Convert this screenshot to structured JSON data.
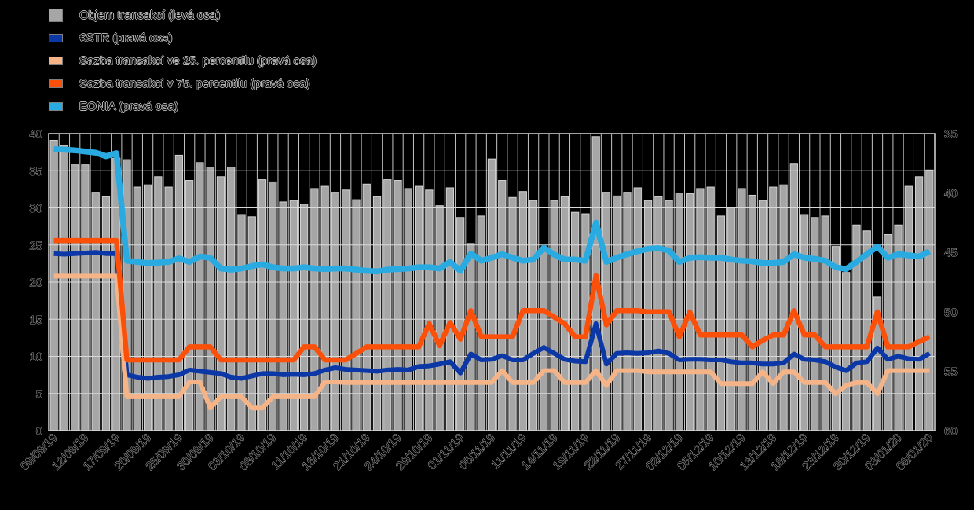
{
  "page": {
    "background": "#000000"
  },
  "legend": {
    "items": [
      {
        "label": "Objem transakcí (levá osa)",
        "color": "#a6a6a6"
      },
      {
        "label": "€STR (pravá osa)",
        "color": "#0b38a6"
      },
      {
        "label": "Sazba transakcí ve 25. percentilu (pravá osa)",
        "color": "#f5b488"
      },
      {
        "label": "Sazba transakcí v 75. percentilu (pravá osa)",
        "color": "#fb500a"
      },
      {
        "label": "EONIA (pravá osa)",
        "color": "#29abe2"
      }
    ]
  },
  "chart_data": {
    "type": "bar",
    "title": "",
    "xlabel": "",
    "ylabel": "",
    "left_axis": {
      "min": 0,
      "max": 40,
      "ticks": [
        "40",
        "35",
        "30",
        "25",
        "20",
        "15",
        "10",
        "5",
        "0"
      ]
    },
    "right_axis": {
      "min": 35,
      "max": 60,
      "inverted": true,
      "ticks": [
        "35",
        "40",
        "45",
        "50",
        "55",
        "60"
      ]
    },
    "grid": {
      "h_color": "#d9d9d9",
      "v_color": "#c4c4c4",
      "frame_color": "#d9d9d9"
    },
    "x_label_step": 3,
    "x_tick_labels": [
      "09/09/19",
      "12/09/19",
      "17/09/19",
      "20/09/19",
      "25/09/19",
      "30/09/19",
      "03/10/19",
      "08/10/19",
      "11/10/19",
      "16/10/19",
      "21/10/19",
      "24/10/19",
      "29/10/19",
      "01/11/19",
      "06/11/19",
      "11/11/19",
      "14/11/19",
      "19/11/19",
      "22/11/19",
      "27/11/19",
      "02/12/19",
      "05/12/19",
      "10/12/19",
      "13/12/19",
      "18/12/19",
      "23/12/19",
      "30/12/19",
      "03/01/20",
      "08/01/20"
    ],
    "categories": [
      "09/09/19",
      "10/09/19",
      "11/09/19",
      "12/09/19",
      "13/09/19",
      "16/09/19",
      "17/09/19",
      "18/09/19",
      "19/09/19",
      "20/09/19",
      "23/09/19",
      "24/09/19",
      "25/09/19",
      "26/09/19",
      "27/09/19",
      "30/09/19",
      "01/10/19",
      "02/10/19",
      "03/10/19",
      "04/10/19",
      "07/10/19",
      "08/10/19",
      "09/10/19",
      "10/10/19",
      "11/10/19",
      "14/10/19",
      "15/10/19",
      "16/10/19",
      "17/10/19",
      "18/10/19",
      "21/10/19",
      "22/10/19",
      "23/10/19",
      "24/10/19",
      "25/10/19",
      "28/10/19",
      "29/10/19",
      "30/10/19",
      "31/10/19",
      "01/11/19",
      "04/11/19",
      "05/11/19",
      "06/11/19",
      "07/11/19",
      "08/11/19",
      "11/11/19",
      "12/11/19",
      "13/11/19",
      "14/11/19",
      "15/11/19",
      "18/11/19",
      "19/11/19",
      "20/11/19",
      "21/11/19",
      "22/11/19",
      "25/11/19",
      "26/11/19",
      "27/11/19",
      "28/11/19",
      "29/11/19",
      "02/12/19",
      "03/12/19",
      "04/12/19",
      "05/12/19",
      "06/12/19",
      "09/12/19",
      "10/12/19",
      "11/12/19",
      "12/12/19",
      "13/12/19",
      "16/12/19",
      "17/12/19",
      "18/12/19",
      "19/12/19",
      "20/12/19",
      "23/12/19",
      "24/12/19",
      "27/12/19",
      "30/12/19",
      "31/12/19",
      "02/01/20",
      "03/01/20",
      "06/01/20",
      "07/01/20",
      "08/01/20"
    ],
    "series": [
      {
        "id": "objem",
        "name": "Objem transakcí (levá osa)",
        "type": "bar",
        "axis": "left",
        "color": "#a6a6a6",
        "values": [
          39.1,
          38.4,
          35.8,
          35.8,
          32.1,
          31.5,
          36.7,
          36.5,
          32.8,
          33.1,
          34.2,
          32.8,
          37.1,
          33.7,
          36.1,
          35.5,
          34.2,
          35.5,
          29.1,
          28.8,
          33.8,
          33.5,
          30.8,
          31.0,
          30.5,
          32.6,
          32.9,
          32.1,
          32.4,
          31.1,
          33.2,
          31.5,
          33.8,
          33.7,
          32.6,
          32.9,
          32.4,
          30.3,
          32.7,
          28.7,
          25.2,
          28.9,
          36.6,
          33.7,
          31.4,
          32.2,
          31.0,
          24.5,
          31.0,
          31.5,
          29.4,
          29.2,
          39.6,
          32.1,
          31.6,
          32.1,
          32.7,
          31.0,
          31.5,
          31.0,
          32.0,
          31.9,
          32.6,
          32.8,
          28.9,
          30.1,
          32.6,
          31.7,
          31.0,
          32.8,
          33.1,
          35.9,
          29.1,
          28.7,
          28.9,
          24.8,
          21.3,
          27.7,
          26.9,
          18.0,
          26.4,
          27.7,
          32.9,
          34.2,
          35.1
        ]
      },
      {
        "id": "estr",
        "name": "€STR (pravá osa)",
        "type": "line",
        "axis": "right",
        "color": "#0b38a6",
        "values": [
          45.1,
          45.15,
          45.1,
          45.05,
          45.0,
          45.1,
          45.1,
          55.3,
          55.5,
          55.6,
          55.5,
          55.45,
          55.3,
          54.9,
          55.0,
          55.1,
          55.2,
          55.5,
          55.6,
          55.4,
          55.2,
          55.2,
          55.3,
          55.25,
          55.3,
          55.2,
          54.9,
          54.7,
          54.85,
          54.9,
          54.95,
          55.0,
          54.9,
          54.85,
          54.9,
          54.6,
          54.55,
          54.4,
          54.2,
          55.15,
          53.55,
          54.05,
          54.0,
          53.7,
          54.05,
          54.05,
          53.5,
          53.0,
          53.5,
          54.0,
          54.15,
          54.2,
          51.0,
          54.4,
          53.5,
          53.45,
          53.5,
          53.45,
          53.3,
          53.5,
          54.05,
          54.0,
          54.0,
          54.05,
          54.05,
          54.2,
          54.3,
          54.3,
          54.4,
          54.4,
          54.3,
          53.55,
          54.0,
          54.05,
          54.2,
          54.65,
          54.95,
          54.3,
          54.2,
          53.05,
          54.0,
          53.75,
          53.95,
          54.0,
          53.5
        ]
      },
      {
        "id": "p25",
        "name": "Sazba transakcí ve 25. percentilu (pravá osa)",
        "type": "line",
        "axis": "right",
        "color": "#f5b488",
        "values": [
          47.0,
          47.0,
          47.0,
          47.0,
          47.0,
          47.0,
          47.0,
          57.15,
          57.15,
          57.15,
          57.15,
          57.15,
          57.15,
          55.9,
          55.9,
          58.1,
          57.15,
          57.15,
          57.15,
          58.1,
          58.1,
          57.15,
          57.15,
          57.15,
          57.15,
          57.15,
          55.9,
          55.9,
          55.95,
          55.95,
          55.95,
          55.95,
          55.95,
          55.95,
          55.95,
          55.95,
          55.95,
          55.95,
          55.95,
          55.95,
          55.95,
          55.95,
          55.95,
          54.95,
          55.95,
          55.95,
          55.95,
          54.95,
          54.95,
          55.95,
          55.95,
          55.95,
          54.95,
          56.2,
          54.95,
          54.95,
          54.95,
          55.05,
          55.05,
          55.05,
          55.05,
          55.05,
          55.05,
          55.05,
          56.05,
          56.05,
          56.05,
          56.05,
          55.05,
          56.05,
          55.05,
          55.05,
          55.95,
          55.95,
          55.95,
          56.9,
          56.2,
          55.95,
          55.95,
          56.9,
          54.95,
          54.95,
          54.95,
          54.95,
          54.95
        ]
      },
      {
        "id": "p75",
        "name": "Sazba transakcí v 75. percentilu (pravá osa)",
        "type": "line",
        "axis": "right",
        "color": "#fb500a",
        "values": [
          44.0,
          44.0,
          44.0,
          44.0,
          44.0,
          44.0,
          44.0,
          54.05,
          54.05,
          54.05,
          54.05,
          54.05,
          54.05,
          52.95,
          52.95,
          52.95,
          54.05,
          54.05,
          54.05,
          54.05,
          54.05,
          54.05,
          54.05,
          54.05,
          52.95,
          52.95,
          54.05,
          54.05,
          54.05,
          53.5,
          52.95,
          52.95,
          52.95,
          52.95,
          52.95,
          52.95,
          51.0,
          52.85,
          50.9,
          52.3,
          49.9,
          52.1,
          52.1,
          52.1,
          52.1,
          49.9,
          49.9,
          49.9,
          50.45,
          51.0,
          52.1,
          52.1,
          46.95,
          51.1,
          49.9,
          49.9,
          49.9,
          50.0,
          50.0,
          50.0,
          52.1,
          50.0,
          51.95,
          51.95,
          51.95,
          51.95,
          51.95,
          52.95,
          52.4,
          51.95,
          51.95,
          49.9,
          51.95,
          51.95,
          52.95,
          52.95,
          52.95,
          52.95,
          52.95,
          50.0,
          52.95,
          52.95,
          52.95,
          52.5,
          52.1
        ]
      },
      {
        "id": "eonia",
        "name": "EONIA (pravá osa)",
        "type": "line",
        "axis": "right",
        "color": "#29abe2",
        "values": [
          36.3,
          36.35,
          36.4,
          36.5,
          36.6,
          36.9,
          36.65,
          45.7,
          45.8,
          45.9,
          45.85,
          45.8,
          45.5,
          45.8,
          45.35,
          45.45,
          46.35,
          46.45,
          46.35,
          46.15,
          46.0,
          46.25,
          46.35,
          46.35,
          46.25,
          46.35,
          46.4,
          46.35,
          46.35,
          46.45,
          46.55,
          46.6,
          46.45,
          46.4,
          46.35,
          46.25,
          46.25,
          46.35,
          45.8,
          46.55,
          45.1,
          45.7,
          45.45,
          45.15,
          45.45,
          45.7,
          45.6,
          44.6,
          45.2,
          45.6,
          45.6,
          45.7,
          42.5,
          45.8,
          45.45,
          45.15,
          44.9,
          44.7,
          44.65,
          44.85,
          45.8,
          45.45,
          45.4,
          45.45,
          45.45,
          45.6,
          45.7,
          45.75,
          45.9,
          45.9,
          45.8,
          45.15,
          45.45,
          45.55,
          45.7,
          46.25,
          46.4,
          45.8,
          45.15,
          44.5,
          45.45,
          45.15,
          45.25,
          45.35,
          44.9
        ]
      }
    ]
  }
}
